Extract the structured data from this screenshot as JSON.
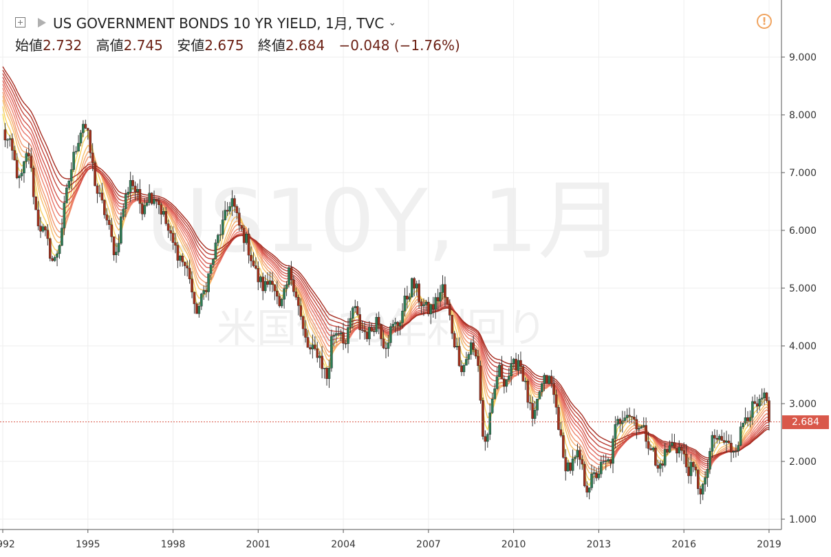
{
  "header": {
    "title": "US GOVERNMENT BONDS 10 YR YIELD, 1月, TVC",
    "ohlc": [
      {
        "label": "始値",
        "value": "2.732"
      },
      {
        "label": "高値",
        "value": "2.745"
      },
      {
        "label": "安値",
        "value": "2.675"
      },
      {
        "label": "終値",
        "value": "2.684"
      }
    ],
    "change": "−0.048 (−1.76%)"
  },
  "watermark": {
    "symbol": "US10Y, 1月",
    "name": "米国債10年利回り"
  },
  "last_price_label": "2.684",
  "colors": {
    "up": "#2e7d57",
    "down": "#a2301c",
    "grid": "#eeeeee",
    "price_line": "#d9584a",
    "ma_fast": "#f7e25b",
    "ma_slow": "#a52a1f"
  },
  "chart_data": {
    "type": "candlestick",
    "title": "US GOVERNMENT BONDS 10 YR YIELD, 1月, TVC",
    "x_range": [
      1992.0,
      2019.05
    ],
    "y_range": [
      0.85,
      9.45
    ],
    "x_ticks": [
      "1992",
      "1995",
      "1998",
      "2001",
      "2004",
      "2007",
      "2010",
      "2013",
      "2016",
      "2019"
    ],
    "y_ticks": [
      "1.000",
      "2.000",
      "3.000",
      "4.000",
      "5.000",
      "6.000",
      "7.000",
      "8.000",
      "9.000"
    ],
    "last_close": 2.684,
    "indicator": "Guppy multiple moving averages (12 EMAs, yellow to dark red)",
    "anchors": [
      [
        1992.0,
        7.7
      ],
      [
        1992.3,
        7.4
      ],
      [
        1992.6,
        6.8
      ],
      [
        1992.9,
        7.4
      ],
      [
        1993.2,
        6.2
      ],
      [
        1993.5,
        5.9
      ],
      [
        1993.8,
        5.4
      ],
      [
        1994.0,
        5.8
      ],
      [
        1994.3,
        6.8
      ],
      [
        1994.6,
        7.5
      ],
      [
        1994.85,
        7.9
      ],
      [
        1995.0,
        7.6
      ],
      [
        1995.3,
        6.7
      ],
      [
        1995.6,
        6.3
      ],
      [
        1995.9,
        5.7
      ],
      [
        1996.0,
        5.6
      ],
      [
        1996.2,
        6.3
      ],
      [
        1996.5,
        6.9
      ],
      [
        1996.9,
        6.4
      ],
      [
        1997.1,
        6.6
      ],
      [
        1997.4,
        6.6
      ],
      [
        1997.7,
        6.2
      ],
      [
        1997.95,
        5.8
      ],
      [
        1998.3,
        5.5
      ],
      [
        1998.6,
        5.2
      ],
      [
        1998.75,
        4.6
      ],
      [
        1998.95,
        4.7
      ],
      [
        1999.3,
        5.3
      ],
      [
        1999.6,
        5.9
      ],
      [
        1999.9,
        6.3
      ],
      [
        2000.05,
        6.6
      ],
      [
        2000.3,
        6.1
      ],
      [
        2000.6,
        5.8
      ],
      [
        2000.95,
        5.2
      ],
      [
        2001.2,
        5.0
      ],
      [
        2001.5,
        5.2
      ],
      [
        2001.75,
        4.6
      ],
      [
        2001.95,
        4.9
      ],
      [
        2002.1,
        5.3
      ],
      [
        2002.3,
        5.0
      ],
      [
        2002.6,
        4.2
      ],
      [
        2002.8,
        3.9
      ],
      [
        2003.1,
        3.9
      ],
      [
        2003.45,
        3.4
      ],
      [
        2003.6,
        4.2
      ],
      [
        2003.9,
        4.3
      ],
      [
        2004.1,
        4.0
      ],
      [
        2004.35,
        4.7
      ],
      [
        2004.6,
        4.3
      ],
      [
        2004.9,
        4.2
      ],
      [
        2005.2,
        4.5
      ],
      [
        2005.45,
        4.0
      ],
      [
        2005.7,
        4.3
      ],
      [
        2005.95,
        4.4
      ],
      [
        2006.2,
        4.8
      ],
      [
        2006.45,
        5.1
      ],
      [
        2006.7,
        4.8
      ],
      [
        2006.95,
        4.6
      ],
      [
        2007.2,
        4.7
      ],
      [
        2007.5,
        5.0
      ],
      [
        2007.7,
        4.6
      ],
      [
        2007.95,
        4.0
      ],
      [
        2008.2,
        3.6
      ],
      [
        2008.5,
        4.0
      ],
      [
        2008.75,
        3.7
      ],
      [
        2008.95,
        2.2
      ],
      [
        2009.2,
        2.8
      ],
      [
        2009.45,
        3.6
      ],
      [
        2009.7,
        3.4
      ],
      [
        2009.95,
        3.6
      ],
      [
        2010.2,
        3.8
      ],
      [
        2010.45,
        3.2
      ],
      [
        2010.7,
        2.6
      ],
      [
        2010.9,
        3.2
      ],
      [
        2011.1,
        3.4
      ],
      [
        2011.3,
        3.4
      ],
      [
        2011.55,
        2.8
      ],
      [
        2011.75,
        2.0
      ],
      [
        2012.0,
        1.9
      ],
      [
        2012.3,
        2.1
      ],
      [
        2012.55,
        1.55
      ],
      [
        2012.8,
        1.7
      ],
      [
        2013.1,
        1.9
      ],
      [
        2013.4,
        2.0
      ],
      [
        2013.6,
        2.6
      ],
      [
        2013.95,
        2.9
      ],
      [
        2014.3,
        2.7
      ],
      [
        2014.6,
        2.5
      ],
      [
        2014.9,
        2.2
      ],
      [
        2015.05,
        1.8
      ],
      [
        2015.3,
        2.1
      ],
      [
        2015.6,
        2.3
      ],
      [
        2015.9,
        2.2
      ],
      [
        2016.1,
        1.9
      ],
      [
        2016.4,
        1.8
      ],
      [
        2016.55,
        1.5
      ],
      [
        2016.75,
        1.6
      ],
      [
        2016.95,
        2.3
      ],
      [
        2017.2,
        2.4
      ],
      [
        2017.5,
        2.3
      ],
      [
        2017.7,
        2.2
      ],
      [
        2017.95,
        2.4
      ],
      [
        2018.15,
        2.8
      ],
      [
        2018.4,
        2.9
      ],
      [
        2018.7,
        2.95
      ],
      [
        2018.85,
        3.15
      ],
      [
        2019.0,
        2.72
      ]
    ]
  }
}
